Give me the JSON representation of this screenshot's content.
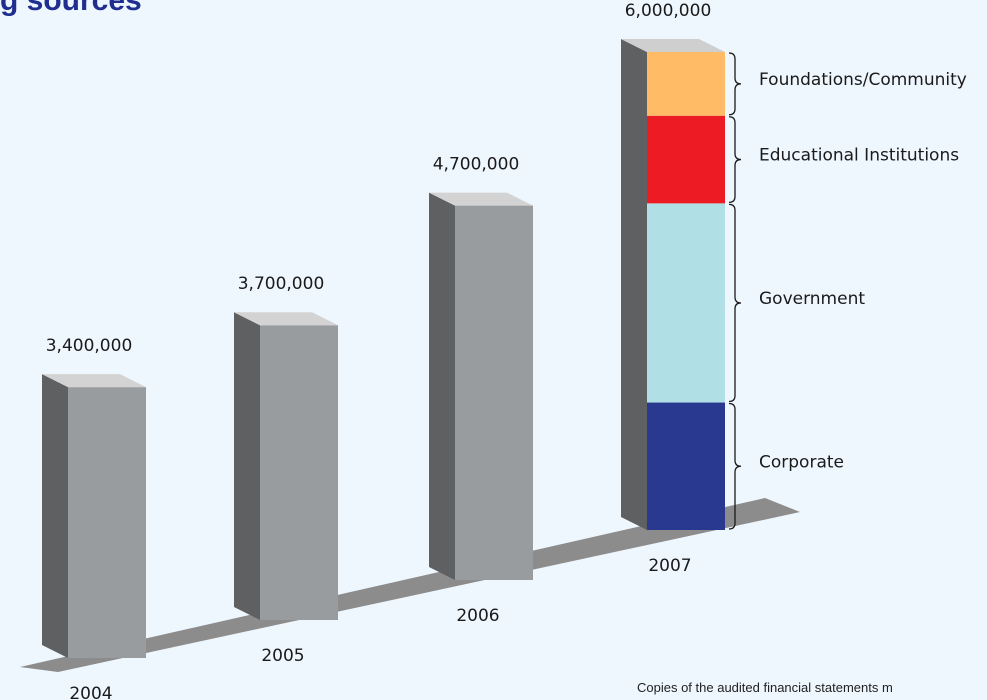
{
  "header": {
    "title_fragment": "g sources"
  },
  "footnote": "Copies of the audited financial statements m",
  "chart_data": {
    "type": "bar",
    "categories": [
      "2004",
      "2005",
      "2006",
      "2007"
    ],
    "totals": [
      3400000,
      3700000,
      4700000,
      6000000
    ],
    "total_labels": [
      "3,400,000",
      "3,700,000",
      "4,700,000",
      "6,000,000"
    ],
    "stack_2007": [
      {
        "name": "Corporate",
        "value": 1600000,
        "color": "#2a3990"
      },
      {
        "name": "Government",
        "value": 2500000,
        "color": "#b0e0e6"
      },
      {
        "name": "Educational Institutions",
        "value": 1100000,
        "color": "#ed1c24"
      },
      {
        "name": "Foundations/Community",
        "value": 800000,
        "color": "#ffbb66"
      }
    ],
    "bar_color": "#999c9f",
    "grid": false,
    "legend": "right"
  }
}
